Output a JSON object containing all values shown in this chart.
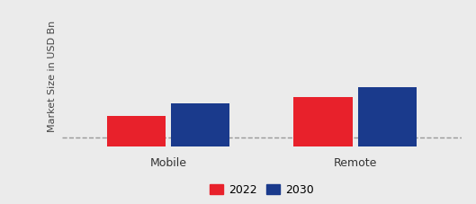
{
  "categories": [
    "Mobile",
    "Remote"
  ],
  "values_2022": [
    1.0,
    1.6
  ],
  "values_2030": [
    1.4,
    1.9
  ],
  "color_2022": "#e8212b",
  "color_2030": "#1a3a8c",
  "ylabel": "Market Size in USD Bn",
  "legend_labels": [
    "2022",
    "2030"
  ],
  "ylim": [
    0,
    4.5
  ],
  "bar_width": 0.22,
  "background_color": "#ebebeb",
  "font_size_ylabel": 8,
  "font_size_legend": 9,
  "font_size_ticks": 9,
  "dashed_line_y": 0.3
}
